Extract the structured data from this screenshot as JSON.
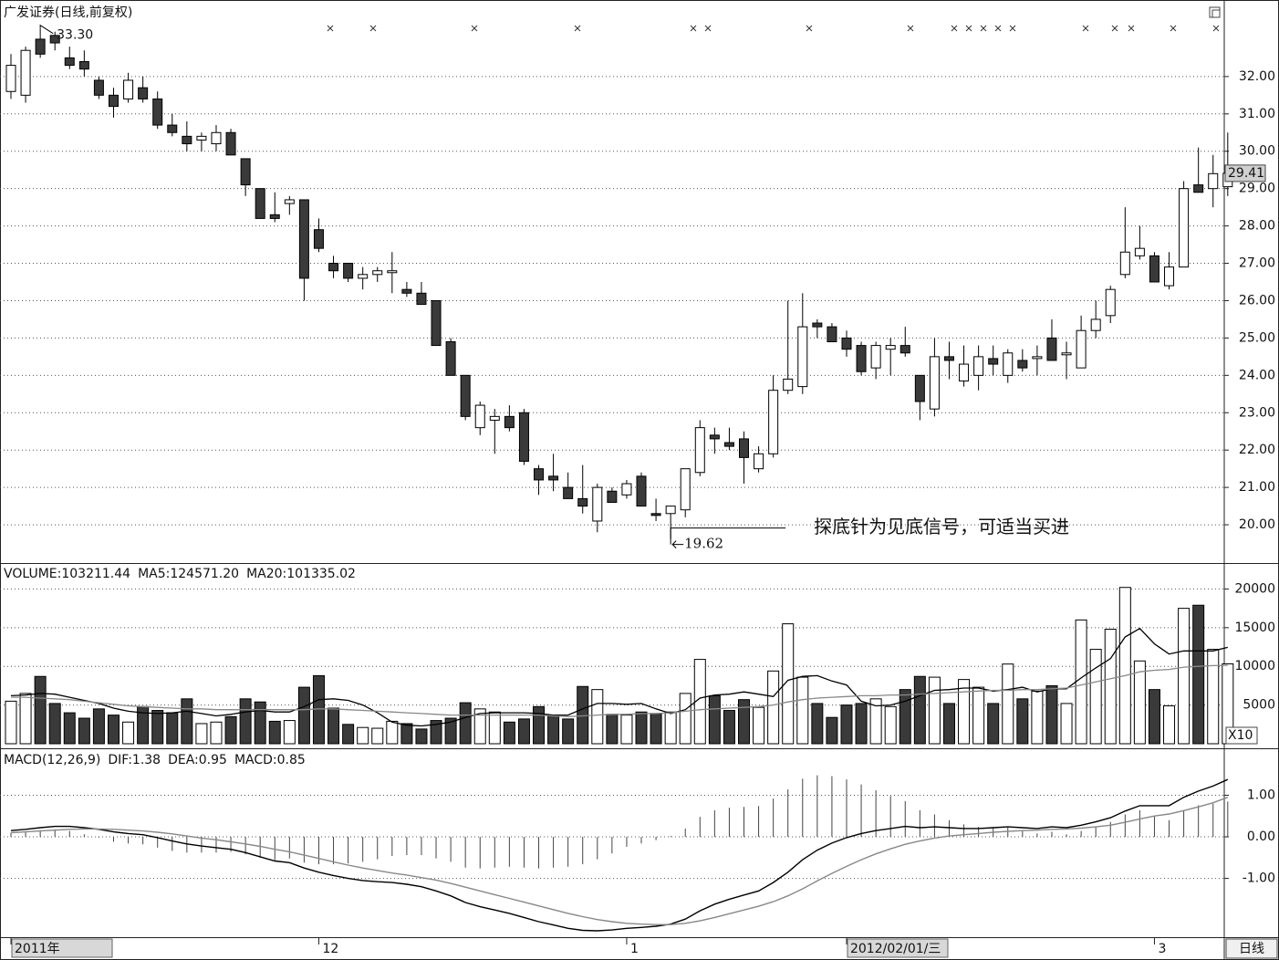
{
  "period_button": "日线",
  "chart_data": [
    {
      "type": "candlestick",
      "title": "广发证券(日线,前复权)",
      "categories": [
        "2011年",
        null,
        null,
        null,
        null,
        null,
        null,
        null,
        null,
        null,
        null,
        null,
        null,
        null,
        null,
        null,
        null,
        null,
        null,
        null,
        null,
        "12",
        null,
        null,
        null,
        null,
        null,
        null,
        null,
        null,
        null,
        null,
        null,
        null,
        null,
        null,
        null,
        null,
        null,
        null,
        null,
        null,
        "1",
        null,
        null,
        null,
        null,
        null,
        null,
        null,
        null,
        null,
        null,
        null,
        null,
        null,
        null,
        "2012/02/01/三",
        null,
        null,
        null,
        null,
        null,
        null,
        null,
        null,
        null,
        null,
        null,
        null,
        null,
        null,
        null,
        null,
        null,
        null,
        null,
        null,
        "3",
        null,
        null,
        null,
        null,
        null
      ],
      "open": [
        31.6,
        31.5,
        33.0,
        33.1,
        32.5,
        32.4,
        31.9,
        31.5,
        31.4,
        31.7,
        31.4,
        30.7,
        30.4,
        30.3,
        30.2,
        30.5,
        29.8,
        29.0,
        28.3,
        28.6,
        28.7,
        27.9,
        27.0,
        27.0,
        26.6,
        26.7,
        26.75,
        26.3,
        26.2,
        26.0,
        24.9,
        24.0,
        22.6,
        22.8,
        22.9,
        23.0,
        21.5,
        21.3,
        21.0,
        20.7,
        20.1,
        20.9,
        20.8,
        21.3,
        20.3,
        20.3,
        20.4,
        21.4,
        22.4,
        22.2,
        22.3,
        21.5,
        21.9,
        23.6,
        23.7,
        25.4,
        25.3,
        25.0,
        24.8,
        24.2,
        24.7,
        24.8,
        24.0,
        23.1,
        24.5,
        23.85,
        24.0,
        24.45,
        24.0,
        24.4,
        24.45,
        25.0,
        24.55,
        24.2,
        25.2,
        25.6,
        26.7,
        27.2,
        27.2,
        26.4,
        26.9,
        29.1,
        29.0,
        29.05
      ],
      "high": [
        32.6,
        32.8,
        33.3,
        33.2,
        32.8,
        32.7,
        32.0,
        31.7,
        32.1,
        32.0,
        31.6,
        31.0,
        30.8,
        30.5,
        30.7,
        30.6,
        29.8,
        29.0,
        28.9,
        28.8,
        28.7,
        28.2,
        27.2,
        27.0,
        26.9,
        26.9,
        27.3,
        26.5,
        26.5,
        26.0,
        25.0,
        24.0,
        23.3,
        23.1,
        23.2,
        23.1,
        21.6,
        21.9,
        21.4,
        21.6,
        21.1,
        21.0,
        21.2,
        21.4,
        20.7,
        20.5,
        21.5,
        22.8,
        22.6,
        22.6,
        22.5,
        22.1,
        24.0,
        26.0,
        26.2,
        25.5,
        25.4,
        25.2,
        24.9,
        24.9,
        25.0,
        25.3,
        24.0,
        25.0,
        24.9,
        24.8,
        24.8,
        24.8,
        24.7,
        24.7,
        24.8,
        25.5,
        24.9,
        25.6,
        26.0,
        26.4,
        28.5,
        28.0,
        27.3,
        27.3,
        29.2,
        30.1,
        29.9,
        30.5
      ],
      "low": [
        31.4,
        31.3,
        32.5,
        32.7,
        32.2,
        32.0,
        31.4,
        30.9,
        31.3,
        31.3,
        30.6,
        30.4,
        30.0,
        30.0,
        30.0,
        29.9,
        28.8,
        28.2,
        28.1,
        28.3,
        26.0,
        27.3,
        26.6,
        26.5,
        26.3,
        26.5,
        26.2,
        26.1,
        25.9,
        24.8,
        24.0,
        22.8,
        22.4,
        21.9,
        22.5,
        21.6,
        20.8,
        20.9,
        20.7,
        20.3,
        19.8,
        20.6,
        20.7,
        20.5,
        20.1,
        19.62,
        20.2,
        21.3,
        21.9,
        22.0,
        21.1,
        21.4,
        21.8,
        23.5,
        23.5,
        25.0,
        24.9,
        24.5,
        24.0,
        23.9,
        24.0,
        24.5,
        22.8,
        22.9,
        23.9,
        23.7,
        23.6,
        24.0,
        23.8,
        24.1,
        24.0,
        24.4,
        23.9,
        24.2,
        25.0,
        25.4,
        26.6,
        27.1,
        26.5,
        26.3,
        26.9,
        28.9,
        28.5,
        28.8
      ],
      "close": [
        32.3,
        32.7,
        32.6,
        32.9,
        32.3,
        32.2,
        31.5,
        31.2,
        31.9,
        31.4,
        30.7,
        30.5,
        30.2,
        30.4,
        30.5,
        29.9,
        29.1,
        28.2,
        28.2,
        28.7,
        26.6,
        27.4,
        26.8,
        26.6,
        26.7,
        26.8,
        26.8,
        26.2,
        25.9,
        24.8,
        24.0,
        22.9,
        23.2,
        22.9,
        22.6,
        21.7,
        21.2,
        21.2,
        20.7,
        20.5,
        21.0,
        20.6,
        21.1,
        20.5,
        20.25,
        20.5,
        21.5,
        22.6,
        22.3,
        22.1,
        21.8,
        21.9,
        23.6,
        23.9,
        25.3,
        25.3,
        24.9,
        24.7,
        24.1,
        24.8,
        24.8,
        24.6,
        23.3,
        24.5,
        24.4,
        24.3,
        24.5,
        24.3,
        24.6,
        24.2,
        24.5,
        24.4,
        24.6,
        25.2,
        25.5,
        26.3,
        27.3,
        27.4,
        26.5,
        26.9,
        29.0,
        28.9,
        29.4,
        29.41
      ],
      "up_color": "#ffffff",
      "down_color": "#3a3a3a",
      "ylim": [
        19,
        34
      ],
      "yticks": [
        {
          "value": 20,
          "label": "20.00"
        },
        {
          "value": 21,
          "label": "21.00"
        },
        {
          "value": 22,
          "label": "22.00"
        },
        {
          "value": 23,
          "label": "23.00"
        },
        {
          "value": 24,
          "label": "24.00"
        },
        {
          "value": 25,
          "label": "25.00"
        },
        {
          "value": 26,
          "label": "26.00"
        },
        {
          "value": 27,
          "label": "27.00"
        },
        {
          "value": 28,
          "label": "28.00"
        },
        {
          "value": 29,
          "label": "29.00"
        },
        {
          "value": 30,
          "label": "30.00"
        },
        {
          "value": 31,
          "label": "31.00"
        },
        {
          "value": 32,
          "label": "32.00"
        }
      ],
      "grid": true,
      "high_marker": {
        "value": 33.3,
        "label": "33.30"
      },
      "low_marker": {
        "value": 19.62,
        "label": "19.62"
      },
      "last_price": 29.41,
      "annotation": "探底针为见底信号，可适当买进"
    },
    {
      "type": "volume",
      "series": [
        {
          "name": "VOLUME:103211.44",
          "type": "bar",
          "color": "#3a3a3a",
          "values": [
            5500,
            6500,
            8700,
            5200,
            4000,
            3300,
            4500,
            3700,
            2800,
            4800,
            4300,
            4000,
            5800,
            2600,
            2800,
            3500,
            5800,
            5400,
            2900,
            3000,
            7300,
            8800,
            4600,
            2500,
            2100,
            2000,
            2900,
            2600,
            1900,
            3000,
            3300,
            5300,
            4500,
            4100,
            2800,
            3200,
            4800,
            3700,
            3200,
            7400,
            7000,
            3800,
            3700,
            4100,
            3900,
            4100,
            6500,
            10900,
            6200,
            4300,
            5700,
            4700,
            9400,
            15500,
            8600,
            5200,
            3400,
            5000,
            5200,
            5800,
            4800,
            7000,
            8700,
            8600,
            5200,
            8300,
            7300,
            5200,
            10300,
            5800,
            6800,
            7500,
            5200,
            16000,
            12200,
            14800,
            20200,
            10700,
            7000,
            4900,
            17500,
            17900,
            12200,
            10321.144
          ]
        },
        {
          "name": "MA5:124571.20",
          "type": "line",
          "color": "#000000",
          "values": [
            6200,
            6300,
            6500,
            6400,
            6000,
            5600,
            5200,
            4600,
            4200,
            4000,
            3900,
            4000,
            4200,
            3900,
            3600,
            3800,
            4100,
            4300,
            4100,
            4100,
            4800,
            5700,
            5800,
            5600,
            5000,
            4000,
            2800,
            2400,
            2300,
            2500,
            2800,
            3400,
            3900,
            4000,
            4000,
            4000,
            3900,
            3700,
            3700,
            4500,
            5200,
            5200,
            5100,
            5200,
            4500,
            3900,
            4400,
            5900,
            6300,
            6400,
            6700,
            6400,
            6100,
            8200,
            8700,
            8800,
            8100,
            7600,
            5500,
            4900,
            5000,
            5500,
            6200,
            6900,
            7000,
            7200,
            7200,
            6800,
            7000,
            7300,
            6700,
            7100,
            7100,
            8500,
            9800,
            11000,
            13800,
            14900,
            12900,
            11600,
            12000,
            12000,
            12000,
            12457.12
          ]
        },
        {
          "name": "MA20:101335.02",
          "type": "line",
          "color": "#888888",
          "values": [
            6000,
            6000,
            5900,
            5800,
            5700,
            5500,
            5300,
            5100,
            4900,
            4800,
            4700,
            4600,
            4500,
            4500,
            4400,
            4400,
            4400,
            4400,
            4400,
            4400,
            4400,
            4500,
            4500,
            4400,
            4300,
            4200,
            4100,
            4000,
            3900,
            3800,
            3700,
            3700,
            3700,
            3700,
            3700,
            3700,
            3700,
            3600,
            3500,
            3600,
            3700,
            3800,
            3800,
            3900,
            3900,
            4000,
            4200,
            4400,
            4500,
            4600,
            4700,
            4800,
            5000,
            5400,
            5700,
            5900,
            6000,
            6100,
            6200,
            6200,
            6300,
            6300,
            6400,
            6500,
            6600,
            6700,
            6800,
            6900,
            6900,
            7000,
            7000,
            7100,
            7200,
            7600,
            8000,
            8400,
            8800,
            9300,
            9500,
            9600,
            9900,
            10000,
            10100,
            10133.502
          ]
        }
      ],
      "ylim": [
        0,
        23000
      ],
      "yticks": [
        5000,
        10000,
        15000,
        20000
      ],
      "grid": true,
      "unit": "X10"
    },
    {
      "type": "macd",
      "title": "MACD(12,26,9)",
      "series": [
        {
          "name": "DIF:1.38",
          "type": "line",
          "color": "#000000",
          "values": [
            0.15,
            0.18,
            0.22,
            0.25,
            0.25,
            0.22,
            0.18,
            0.12,
            0.08,
            0.05,
            -0.02,
            -0.1,
            -0.17,
            -0.22,
            -0.26,
            -0.3,
            -0.38,
            -0.48,
            -0.58,
            -0.62,
            -0.75,
            -0.85,
            -0.93,
            -1.0,
            -1.05,
            -1.08,
            -1.1,
            -1.14,
            -1.2,
            -1.3,
            -1.42,
            -1.58,
            -1.68,
            -1.76,
            -1.84,
            -1.94,
            -2.04,
            -2.12,
            -2.2,
            -2.25,
            -2.26,
            -2.24,
            -2.2,
            -2.18,
            -2.15,
            -2.1,
            -1.98,
            -1.78,
            -1.62,
            -1.5,
            -1.4,
            -1.3,
            -1.1,
            -0.85,
            -0.55,
            -0.32,
            -0.15,
            -0.02,
            0.08,
            0.15,
            0.2,
            0.25,
            0.22,
            0.24,
            0.22,
            0.2,
            0.2,
            0.22,
            0.24,
            0.22,
            0.2,
            0.24,
            0.22,
            0.28,
            0.36,
            0.46,
            0.62,
            0.75,
            0.75,
            0.75,
            0.95,
            1.1,
            1.22,
            1.38
          ]
        },
        {
          "name": "DEA:0.95",
          "type": "line",
          "color": "#888888",
          "values": [
            0.1,
            0.12,
            0.14,
            0.16,
            0.18,
            0.19,
            0.19,
            0.18,
            0.16,
            0.14,
            0.11,
            0.07,
            0.02,
            -0.03,
            -0.07,
            -0.12,
            -0.17,
            -0.23,
            -0.3,
            -0.36,
            -0.44,
            -0.52,
            -0.6,
            -0.68,
            -0.75,
            -0.81,
            -0.87,
            -0.92,
            -0.98,
            -1.04,
            -1.12,
            -1.21,
            -1.3,
            -1.39,
            -1.48,
            -1.57,
            -1.66,
            -1.75,
            -1.84,
            -1.92,
            -1.99,
            -2.04,
            -2.08,
            -2.1,
            -2.11,
            -2.11,
            -2.08,
            -2.02,
            -1.94,
            -1.85,
            -1.76,
            -1.67,
            -1.56,
            -1.42,
            -1.25,
            -1.06,
            -0.88,
            -0.71,
            -0.55,
            -0.41,
            -0.29,
            -0.18,
            -0.1,
            -0.03,
            0.02,
            0.05,
            0.08,
            0.11,
            0.13,
            0.15,
            0.16,
            0.18,
            0.19,
            0.21,
            0.24,
            0.28,
            0.35,
            0.43,
            0.5,
            0.55,
            0.63,
            0.72,
            0.82,
            0.95
          ]
        },
        {
          "name": "MACD:0.85",
          "type": "bar",
          "color": "#444444",
          "values": [
            0.1,
            0.12,
            0.16,
            0.18,
            0.14,
            0.06,
            -0.02,
            -0.12,
            -0.16,
            -0.18,
            -0.26,
            -0.34,
            -0.38,
            -0.38,
            -0.38,
            -0.36,
            -0.42,
            -0.5,
            -0.56,
            -0.52,
            -0.62,
            -0.66,
            -0.66,
            -0.64,
            -0.6,
            -0.54,
            -0.46,
            -0.44,
            -0.44,
            -0.52,
            -0.6,
            -0.74,
            -0.76,
            -0.74,
            -0.72,
            -0.74,
            -0.76,
            -0.74,
            -0.72,
            -0.66,
            -0.54,
            -0.4,
            -0.24,
            -0.16,
            -0.08,
            0.02,
            0.2,
            0.48,
            0.64,
            0.7,
            0.72,
            0.74,
            0.92,
            1.14,
            1.4,
            1.48,
            1.46,
            1.38,
            1.26,
            1.12,
            0.98,
            0.86,
            0.64,
            0.54,
            0.4,
            0.3,
            0.24,
            0.22,
            0.22,
            0.14,
            0.08,
            0.12,
            0.06,
            0.14,
            0.24,
            0.36,
            0.54,
            0.64,
            0.5,
            0.4,
            0.64,
            0.76,
            0.8,
            0.85
          ]
        }
      ],
      "ylim": [
        -2.37,
        2.02
      ],
      "yticks": [
        {
          "value": -1,
          "label": "-1.00"
        },
        {
          "value": 0,
          "label": "0.00"
        },
        {
          "value": 1,
          "label": "1.00"
        }
      ],
      "grid": true
    }
  ]
}
